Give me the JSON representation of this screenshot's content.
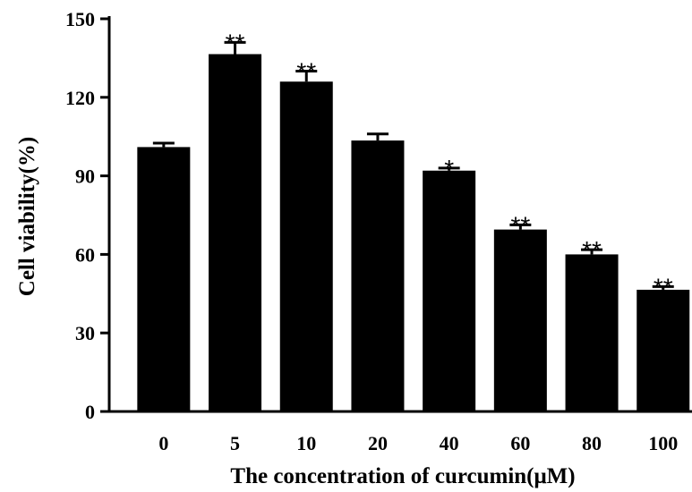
{
  "chart_data": {
    "type": "bar",
    "title": "",
    "xlabel": "The concentration of curcumin(μM)",
    "ylabel": "Cell viability(%)",
    "categories": [
      "0",
      "5",
      "10",
      "20",
      "40",
      "60",
      "80",
      "100"
    ],
    "values": [
      101,
      136.5,
      126,
      103.5,
      92,
      69.5,
      60,
      46.5
    ],
    "errors": [
      1.5,
      4.5,
      4,
      2.5,
      1,
      1.8,
      1.8,
      1.2
    ],
    "significance": [
      "",
      "**",
      "**",
      "",
      "*",
      "**",
      "**",
      "**"
    ],
    "ylim": [
      0,
      150
    ],
    "yticks": [
      "0",
      "30",
      "60",
      "90",
      "120",
      "150"
    ],
    "grid": false,
    "legend": "none",
    "bar_color": "#000000"
  }
}
